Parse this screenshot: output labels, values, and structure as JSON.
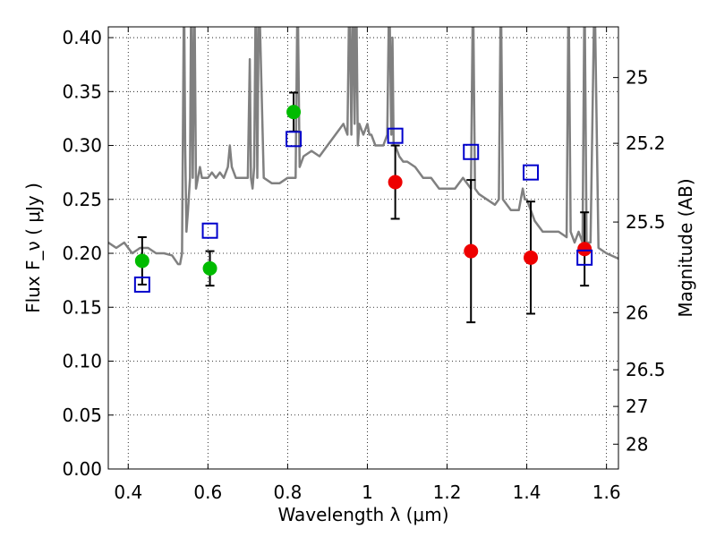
{
  "chart_data": {
    "type": "scatter",
    "title": "",
    "xlabel": "Wavelength  λ (μm)",
    "ylabel": "Flux  F_ν  ( μJy )",
    "y2label": "Magnitude (AB)",
    "xlim": [
      0.35,
      1.63
    ],
    "ylim": [
      0.0,
      0.41
    ],
    "grid": true,
    "x_ticks": [
      0.4,
      0.6,
      0.8,
      1.0,
      1.2,
      1.4,
      1.6
    ],
    "x_tick_labels": [
      "0.4",
      "0.6",
      "0.8",
      "1",
      "1.2",
      "1.4",
      "1.6"
    ],
    "y_ticks": [
      0.0,
      0.05,
      0.1,
      0.15,
      0.2,
      0.25,
      0.3,
      0.35,
      0.4
    ],
    "y_tick_labels": [
      "0.00",
      "0.05",
      "0.10",
      "0.15",
      "0.20",
      "0.25",
      "0.30",
      "0.35",
      "0.40"
    ],
    "y2_ticks": [
      {
        "label": "25",
        "flux": 0.363
      },
      {
        "label": "25.2",
        "flux": 0.302
      },
      {
        "label": "25.5",
        "flux": 0.229
      },
      {
        "label": "26",
        "flux": 0.145
      },
      {
        "label": "26.5",
        "flux": 0.092
      },
      {
        "label": "27",
        "flux": 0.058
      },
      {
        "label": "28",
        "flux": 0.023
      }
    ],
    "series": [
      {
        "marker": "circle",
        "color": "#00bb00",
        "x": [
          0.435,
          0.605,
          0.815
        ],
        "y": [
          0.193,
          0.186,
          0.331
        ],
        "yerr": [
          0.022,
          0.016,
          0.018
        ]
      },
      {
        "marker": "circle",
        "color": "#ee0000",
        "x": [
          1.07,
          1.26,
          1.41,
          1.545
        ],
        "y": [
          0.266,
          0.202,
          0.196,
          0.204
        ],
        "yerr": [
          0.034,
          0.066,
          0.052,
          0.034
        ]
      },
      {
        "marker": "square",
        "color": "#0000cc",
        "x": [
          0.435,
          0.605,
          0.815,
          1.07,
          1.26,
          1.41,
          1.545
        ],
        "y": [
          0.171,
          0.221,
          0.306,
          0.309,
          0.294,
          0.275,
          0.196
        ]
      },
      {
        "marker": "line",
        "color": "#808080",
        "x": [
          0.35,
          0.37,
          0.39,
          0.41,
          0.43,
          0.45,
          0.47,
          0.49,
          0.51,
          0.525,
          0.53,
          0.535,
          0.54,
          0.543,
          0.546,
          0.55,
          0.555,
          0.558,
          0.562,
          0.566,
          0.57,
          0.575,
          0.58,
          0.585,
          0.59,
          0.6,
          0.61,
          0.62,
          0.63,
          0.64,
          0.65,
          0.655,
          0.66,
          0.665,
          0.67,
          0.69,
          0.7,
          0.705,
          0.708,
          0.712,
          0.716,
          0.72,
          0.724,
          0.728,
          0.74,
          0.76,
          0.78,
          0.8,
          0.82,
          0.825,
          0.83,
          0.84,
          0.86,
          0.88,
          0.9,
          0.92,
          0.94,
          0.95,
          0.955,
          0.96,
          0.964,
          0.968,
          0.972,
          0.976,
          0.98,
          0.99,
          1.0,
          1.005,
          1.01,
          1.02,
          1.04,
          1.05,
          1.055,
          1.06,
          1.063,
          1.066,
          1.07,
          1.08,
          1.09,
          1.1,
          1.12,
          1.14,
          1.16,
          1.18,
          1.2,
          1.22,
          1.24,
          1.26,
          1.265,
          1.27,
          1.28,
          1.3,
          1.32,
          1.33,
          1.335,
          1.34,
          1.36,
          1.38,
          1.39,
          1.395,
          1.4,
          1.42,
          1.44,
          1.46,
          1.48,
          1.5,
          1.505,
          1.51,
          1.52,
          1.53,
          1.54,
          1.545,
          1.55,
          1.555,
          1.56,
          1.57,
          1.58,
          1.6,
          1.63
        ],
        "y": [
          0.21,
          0.205,
          0.21,
          0.2,
          0.205,
          0.205,
          0.2,
          0.2,
          0.198,
          0.19,
          0.19,
          0.2,
          0.45,
          0.3,
          0.22,
          0.24,
          0.27,
          0.45,
          0.27,
          0.45,
          0.26,
          0.27,
          0.28,
          0.27,
          0.27,
          0.27,
          0.275,
          0.27,
          0.275,
          0.27,
          0.28,
          0.3,
          0.28,
          0.275,
          0.27,
          0.27,
          0.27,
          0.38,
          0.27,
          0.26,
          0.28,
          0.45,
          0.27,
          0.45,
          0.27,
          0.265,
          0.265,
          0.27,
          0.27,
          0.45,
          0.28,
          0.29,
          0.295,
          0.29,
          0.3,
          0.31,
          0.32,
          0.31,
          0.45,
          0.31,
          0.45,
          0.32,
          0.45,
          0.3,
          0.32,
          0.31,
          0.32,
          0.31,
          0.31,
          0.3,
          0.3,
          0.31,
          0.45,
          0.31,
          0.4,
          0.3,
          0.3,
          0.29,
          0.285,
          0.285,
          0.28,
          0.27,
          0.27,
          0.26,
          0.26,
          0.26,
          0.27,
          0.26,
          0.45,
          0.26,
          0.255,
          0.25,
          0.245,
          0.25,
          0.45,
          0.25,
          0.24,
          0.24,
          0.26,
          0.25,
          0.25,
          0.23,
          0.22,
          0.22,
          0.22,
          0.215,
          0.45,
          0.22,
          0.21,
          0.22,
          0.21,
          0.45,
          0.21,
          0.21,
          0.21,
          0.45,
          0.205,
          0.2,
          0.195
        ]
      }
    ]
  }
}
